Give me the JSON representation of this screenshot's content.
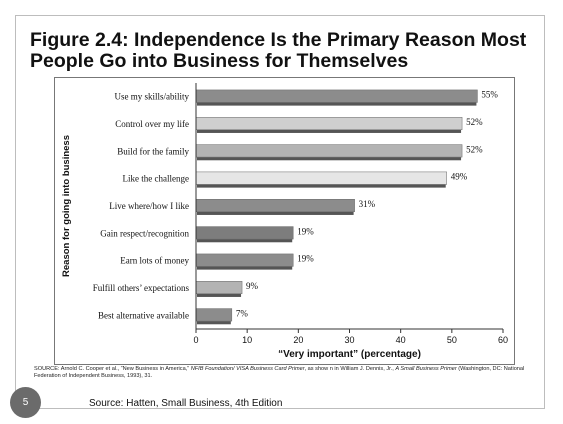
{
  "slide": {
    "title": "Figure 2.4: Independence Is the Primary Reason Most People Go into Business for Themselves",
    "source_prefix": "SOURCE:  Arnold C. Cooper et al., “New Business in America,” ",
    "source_italic_1": "NFIB Foundation/ VISA Business Card Primer",
    "source_middle": ", as show n in William J. Dennis, Jr., ",
    "source_italic_2": "A Small Business Primer",
    "source_suffix": " (Washington, DC: National Federation of Independent Business, 1993), 31.",
    "footer": "Source:  Hatten,  Small Business, 4th Edition",
    "slide_number": "5"
  },
  "chart_data": {
    "type": "bar",
    "orientation": "horizontal",
    "categories": [
      "Use my skills/ability",
      "Control over my life",
      "Build for the family",
      "Like the challenge",
      "Live where/how I like",
      "Gain respect/recognition",
      "Earn lots of money",
      "Fulfill others’ expectations",
      "Best alternative available"
    ],
    "values": [
      55,
      52,
      52,
      49,
      31,
      19,
      19,
      9,
      7
    ],
    "value_labels": [
      "55%",
      "52%",
      "52%",
      "49%",
      "31%",
      "19%",
      "19%",
      "9%",
      "7%"
    ],
    "bar_colors": [
      "#8c8c8c",
      "#cfcfcf",
      "#b3b3b3",
      "#e6e6e6",
      "#8c8c8c",
      "#7d7d7d",
      "#8c8c8c",
      "#b3b3b3",
      "#8c8c8c"
    ],
    "shadow_color": "#555555",
    "xlabel": "“Very important” (percentage)",
    "ylabel": "Reason for going into business",
    "xlim": [
      0,
      60
    ],
    "xticks": [
      0,
      10,
      20,
      30,
      40,
      50,
      60
    ],
    "grid": false,
    "legend": "none"
  }
}
